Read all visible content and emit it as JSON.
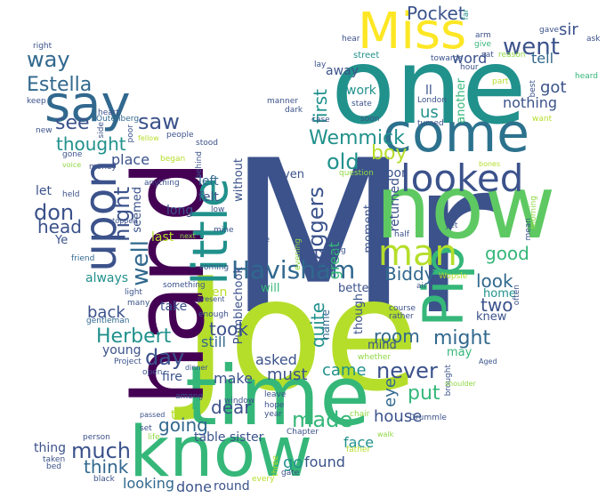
{
  "palette": {
    "purple": "#440154",
    "indigo": "#3b528b",
    "blue": "#31688e",
    "teal": "#21918c",
    "green": "#35b779",
    "lime": "#90d743",
    "yellow": "#fde725",
    "lightgreen": "#5ec962",
    "olive": "#b5de2b",
    "slate": "#2c728e"
  },
  "words": [
    {
      "text": "Mr",
      "color": "indigo"
    },
    {
      "text": "Joe",
      "color": "olive"
    },
    {
      "text": "one",
      "color": "teal"
    },
    {
      "text": "now",
      "color": "lightgreen"
    },
    {
      "text": "time",
      "color": "green"
    },
    {
      "text": "know",
      "color": "green"
    },
    {
      "text": "hand",
      "color": "purple"
    },
    {
      "text": "Miss",
      "color": "yellow"
    },
    {
      "text": "come",
      "color": "slate"
    },
    {
      "text": "say",
      "color": "blue"
    },
    {
      "text": "Pip",
      "color": "green"
    },
    {
      "text": "little",
      "color": "teal"
    },
    {
      "text": "upon",
      "color": "indigo"
    },
    {
      "text": "looked",
      "color": "indigo"
    },
    {
      "text": "man",
      "color": "olive"
    },
    {
      "text": "Havisham",
      "color": "blue"
    },
    {
      "text": "went",
      "color": "indigo"
    },
    {
      "text": "Pocket",
      "color": "indigo"
    },
    {
      "text": "way",
      "color": "blue"
    },
    {
      "text": "Estella",
      "color": "blue"
    },
    {
      "text": "see",
      "color": "indigo"
    },
    {
      "text": "thought",
      "color": "teal"
    },
    {
      "text": "saw",
      "color": "indigo"
    },
    {
      "text": "Wemmick",
      "color": "teal"
    },
    {
      "text": "old",
      "color": "teal"
    },
    {
      "text": "boy",
      "color": "olive"
    },
    {
      "text": "Herbert",
      "color": "teal"
    },
    {
      "text": "day",
      "color": "indigo"
    },
    {
      "text": "never",
      "color": "indigo"
    },
    {
      "text": "much",
      "color": "indigo"
    },
    {
      "text": "made",
      "color": "green"
    },
    {
      "text": "might",
      "color": "blue"
    },
    {
      "text": "well",
      "color": "blue"
    },
    {
      "text": "night",
      "color": "indigo"
    },
    {
      "text": "don",
      "color": "indigo"
    },
    {
      "text": "head",
      "color": "indigo"
    },
    {
      "text": "Jaggers",
      "color": "indigo"
    },
    {
      "text": "Biddy",
      "color": "blue"
    },
    {
      "text": "sir",
      "color": "indigo"
    },
    {
      "text": "got",
      "color": "indigo"
    },
    {
      "text": "good",
      "color": "green"
    },
    {
      "text": "two",
      "color": "indigo"
    },
    {
      "text": "look",
      "color": "blue"
    },
    {
      "text": "first",
      "color": "teal"
    },
    {
      "text": "us",
      "color": "teal"
    },
    {
      "text": "nothing",
      "color": "indigo"
    },
    {
      "text": "word",
      "color": "indigo"
    },
    {
      "text": "tell",
      "color": "blue"
    },
    {
      "text": "put",
      "color": "green"
    },
    {
      "text": "quite",
      "color": "teal"
    },
    {
      "text": "room",
      "color": "blue"
    },
    {
      "text": "house",
      "color": "indigo"
    },
    {
      "text": "back",
      "color": "indigo"
    },
    {
      "text": "took",
      "color": "indigo"
    },
    {
      "text": "going",
      "color": "blue"
    },
    {
      "text": "think",
      "color": "blue"
    },
    {
      "text": "dear",
      "color": "indigo"
    },
    {
      "text": "came",
      "color": "teal"
    },
    {
      "text": "must",
      "color": "indigo"
    },
    {
      "text": "asked",
      "color": "indigo"
    },
    {
      "text": "eye",
      "color": "blue"
    },
    {
      "text": "face",
      "color": "teal"
    },
    {
      "text": "go",
      "color": "teal"
    },
    {
      "text": "found",
      "color": "indigo"
    },
    {
      "text": "done",
      "color": "indigo"
    },
    {
      "text": "looking",
      "color": "blue"
    },
    {
      "text": "round",
      "color": "indigo"
    },
    {
      "text": "sister",
      "color": "indigo"
    },
    {
      "text": "table",
      "color": "indigo"
    },
    {
      "text": "make",
      "color": "indigo"
    },
    {
      "text": "still",
      "color": "blue"
    },
    {
      "text": "young",
      "color": "indigo"
    },
    {
      "text": "place",
      "color": "indigo"
    },
    {
      "text": "let",
      "color": "indigo"
    },
    {
      "text": "long",
      "color": "indigo"
    },
    {
      "text": "left",
      "color": "blue"
    },
    {
      "text": "felt",
      "color": "indigo"
    },
    {
      "text": "always",
      "color": "teal"
    },
    {
      "text": "last",
      "color": "olive"
    },
    {
      "text": "seen",
      "color": "olive"
    },
    {
      "text": "take",
      "color": "indigo"
    },
    {
      "text": "fire",
      "color": "indigo"
    },
    {
      "text": "told",
      "color": "olive"
    },
    {
      "text": "thing",
      "color": "indigo"
    },
    {
      "text": "door",
      "color": "indigo"
    },
    {
      "text": "returned",
      "color": "indigo"
    },
    {
      "text": "work",
      "color": "teal"
    },
    {
      "text": "ll",
      "color": "indigo"
    },
    {
      "text": "away",
      "color": "indigo"
    },
    {
      "text": "great",
      "color": "green"
    },
    {
      "text": "without",
      "color": "indigo"
    },
    {
      "text": "even",
      "color": "indigo"
    },
    {
      "text": "moment",
      "color": "indigo"
    },
    {
      "text": "Pumblechook",
      "color": "indigo"
    },
    {
      "text": "better",
      "color": "indigo"
    },
    {
      "text": "will",
      "color": "green"
    },
    {
      "text": "mind",
      "color": "indigo"
    },
    {
      "text": "though",
      "color": "indigo"
    },
    {
      "text": "home",
      "color": "teal"
    },
    {
      "text": "knew",
      "color": "indigo"
    },
    {
      "text": "may",
      "color": "green"
    },
    {
      "text": "Ye",
      "color": "indigo"
    },
    {
      "text": "another",
      "color": "green"
    },
    {
      "text": "seemed",
      "color": "indigo"
    },
    {
      "text": "name",
      "color": "blue"
    },
    {
      "text": "hear",
      "color": "indigo"
    },
    {
      "text": "street",
      "color": "teal"
    },
    {
      "text": "towards",
      "color": "indigo"
    },
    {
      "text": "far",
      "color": "teal"
    },
    {
      "text": "arm",
      "color": "indigo"
    },
    {
      "text": "give",
      "color": "green"
    },
    {
      "text": "gave",
      "color": "indigo"
    },
    {
      "text": "ask",
      "color": "indigo"
    },
    {
      "text": "sat",
      "color": "indigo"
    },
    {
      "text": "reason",
      "color": "lime"
    },
    {
      "text": "heard",
      "color": "green"
    },
    {
      "text": "right",
      "color": "indigo"
    },
    {
      "text": "lay",
      "color": "indigo"
    },
    {
      "text": "hour",
      "color": "indigo"
    },
    {
      "text": "part",
      "color": "olive"
    },
    {
      "text": "best",
      "color": "indigo"
    },
    {
      "text": "keep",
      "color": "indigo"
    },
    {
      "text": "heart",
      "color": "indigo"
    },
    {
      "text": "state",
      "color": "indigo"
    },
    {
      "text": "London",
      "color": "indigo"
    },
    {
      "text": "Outenberg",
      "color": "blue"
    },
    {
      "text": "side",
      "color": "indigo"
    },
    {
      "text": "dark",
      "color": "indigo"
    },
    {
      "text": "manner",
      "color": "indigo"
    },
    {
      "text": "case",
      "color": "indigo"
    },
    {
      "text": "soon",
      "color": "indigo"
    },
    {
      "text": "turned",
      "color": "indigo"
    },
    {
      "text": "want",
      "color": "olive"
    },
    {
      "text": "new",
      "color": "indigo"
    },
    {
      "text": "poor",
      "color": "indigo"
    },
    {
      "text": "fellow",
      "color": "olive"
    },
    {
      "text": "people",
      "color": "indigo"
    },
    {
      "text": "stood",
      "color": "indigo"
    },
    {
      "text": "gone",
      "color": "indigo"
    },
    {
      "text": "voice",
      "color": "lime"
    },
    {
      "text": "money",
      "color": "indigo"
    },
    {
      "text": "began",
      "color": "olive"
    },
    {
      "text": "behind",
      "color": "indigo"
    },
    {
      "text": "question",
      "color": "lime"
    },
    {
      "text": "bones",
      "color": "olive"
    },
    {
      "text": "morning",
      "color": "lime"
    },
    {
      "text": "mean",
      "color": "indigo"
    },
    {
      "text": "anything",
      "color": "indigo"
    },
    {
      "text": "held",
      "color": "indigo"
    },
    {
      "text": "low",
      "color": "indigo"
    },
    {
      "text": "stopped",
      "color": "indigo"
    },
    {
      "text": "mine",
      "color": "indigo"
    },
    {
      "text": "re",
      "color": "indigo"
    },
    {
      "text": "evening",
      "color": "lime"
    },
    {
      "text": "half",
      "color": "indigo"
    },
    {
      "text": "leg",
      "color": "indigo"
    },
    {
      "text": "yet",
      "color": "indigo"
    },
    {
      "text": "next",
      "color": "lime"
    },
    {
      "text": "friend",
      "color": "blue"
    },
    {
      "text": "coming",
      "color": "indigo"
    },
    {
      "text": "something",
      "color": "indigo"
    },
    {
      "text": "present",
      "color": "indigo"
    },
    {
      "text": "light",
      "color": "indigo"
    },
    {
      "text": "many",
      "color": "indigo"
    },
    {
      "text": "gentleman",
      "color": "blue"
    },
    {
      "text": "enough",
      "color": "indigo"
    },
    {
      "text": "air",
      "color": "indigo"
    },
    {
      "text": "Wopsle",
      "color": "olive"
    },
    {
      "text": "often",
      "color": "indigo"
    },
    {
      "text": "course",
      "color": "indigo"
    },
    {
      "text": "rather",
      "color": "indigo"
    },
    {
      "text": "Project",
      "color": "indigo"
    },
    {
      "text": "open",
      "color": "indigo"
    },
    {
      "text": "dinner",
      "color": "indigo"
    },
    {
      "text": "whether",
      "color": "lime"
    },
    {
      "text": "Aged",
      "color": "indigo"
    },
    {
      "text": "brought",
      "color": "indigo"
    },
    {
      "text": "shoulder",
      "color": "lime"
    },
    {
      "text": "among",
      "color": "indigo"
    },
    {
      "text": "window",
      "color": "indigo"
    },
    {
      "text": "leave",
      "color": "indigo"
    },
    {
      "text": "hope",
      "color": "indigo"
    },
    {
      "text": "year",
      "color": "indigo"
    },
    {
      "text": "Drummle",
      "color": "indigo"
    },
    {
      "text": "person",
      "color": "indigo"
    },
    {
      "text": "passed",
      "color": "indigo"
    },
    {
      "text": "chair",
      "color": "lime"
    },
    {
      "text": "life",
      "color": "lime"
    },
    {
      "text": "set",
      "color": "indigo"
    },
    {
      "text": "Chapter",
      "color": "indigo"
    },
    {
      "text": "walk",
      "color": "lime"
    },
    {
      "text": "father",
      "color": "olive"
    },
    {
      "text": "taken",
      "color": "indigo"
    },
    {
      "text": "bed",
      "color": "indigo"
    },
    {
      "text": "three",
      "color": "olive"
    },
    {
      "text": "black",
      "color": "indigo"
    },
    {
      "text": "every",
      "color": "olive"
    },
    {
      "text": "gate",
      "color": "indigo"
    }
  ]
}
